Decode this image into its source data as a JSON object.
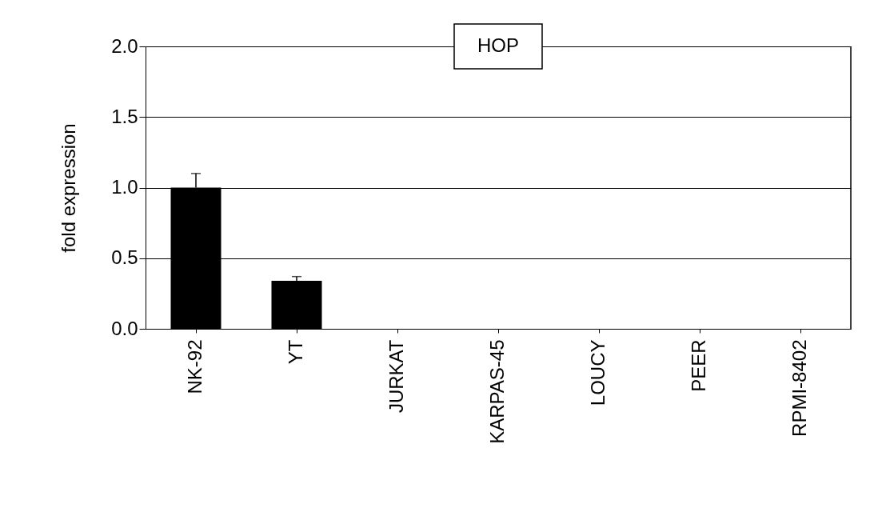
{
  "chart_data": {
    "type": "bar",
    "title": "HOP",
    "ylabel": "fold expression",
    "categories": [
      "NK-92",
      "YT",
      "JURKAT",
      "KARPAS-45",
      "LOUCY",
      "PEER",
      "RPMI-8402"
    ],
    "values": [
      1.0,
      0.34,
      0,
      0,
      0,
      0,
      0
    ],
    "errors": [
      [
        1.0,
        1.1
      ],
      [
        0.34,
        0.37
      ],
      null,
      null,
      null,
      null,
      null
    ],
    "color": "#000000",
    "ylim": [
      0,
      2.0
    ],
    "yticks": [
      {
        "value": 0,
        "label": "0.0"
      },
      {
        "value": 0.5,
        "label": "0.5"
      },
      {
        "value": 1.0,
        "label": "1.0"
      },
      {
        "value": 1.5,
        "label": "1.5"
      },
      {
        "value": 2.0,
        "label": "2.0"
      }
    ],
    "grid": "y"
  }
}
